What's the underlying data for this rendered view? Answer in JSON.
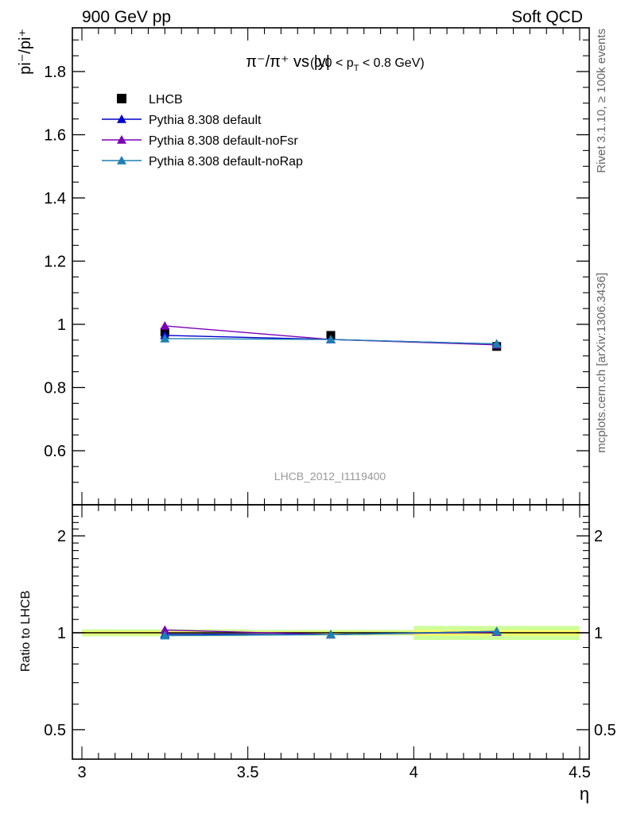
{
  "header": {
    "left": "900 GeV pp",
    "right": "Soft QCD"
  },
  "side": {
    "rivet": "Rivet 3.1.10, ≥ 100k events",
    "source": "mcplots.cern.ch [arXiv:1306.3436]"
  },
  "analysis_id": "LHCB_2012_I1119400",
  "chart_data": [
    {
      "type": "line",
      "title": {
        "main": "π⁻/π⁺ vs |y|",
        "sub": "(0.0 < p",
        "sub_T": "T",
        "sub_end": " < 0.8 GeV)"
      },
      "ylabel": "pi⁻/pi⁺",
      "xlim": [
        3.0,
        4.5
      ],
      "ylim": [
        0.44,
        1.95
      ],
      "yticks": [
        0.6,
        0.8,
        1.0,
        1.2,
        1.4,
        1.6,
        1.8
      ],
      "ytick_labels": [
        "0.6",
        "0.8",
        "1",
        "1.2",
        "1.4",
        "1.6",
        "1.8"
      ],
      "legend_position": "top-left",
      "series": [
        {
          "name": "LHCB",
          "kind": "data",
          "color": "#000000",
          "x": [
            3.25,
            3.75,
            4.25
          ],
          "y": [
            0.975,
            0.965,
            0.93
          ],
          "err": [
            0.012,
            0.01,
            0.01
          ]
        },
        {
          "name": "Pythia 8.308 default",
          "kind": "mc",
          "color": "#0000cc",
          "x": [
            3.25,
            3.75,
            4.25
          ],
          "y": [
            0.965,
            0.952,
            0.938
          ],
          "err": [
            0.006,
            0.003,
            0.003
          ]
        },
        {
          "name": "Pythia 8.308 default-noFsr",
          "kind": "mc",
          "color": "#7a00b4",
          "x": [
            3.25,
            3.75,
            4.25
          ],
          "y": [
            0.995,
            0.952,
            0.935
          ],
          "err": [
            0.012,
            0.004,
            0.004
          ]
        },
        {
          "name": "Pythia 8.308 default-noRap",
          "kind": "mc",
          "color": "#1e7fb4",
          "x": [
            3.25,
            3.75,
            4.25
          ],
          "y": [
            0.955,
            0.952,
            0.938
          ],
          "err": [
            0.005,
            0.003,
            0.003
          ]
        }
      ]
    },
    {
      "type": "line",
      "ylabel": "Ratio to LHCB",
      "xlabel": "η",
      "xlim": [
        3.0,
        4.5
      ],
      "ylim": [
        0.35,
        2.35
      ],
      "xticks": [
        3,
        3.5,
        4,
        4.5
      ],
      "xtick_labels": [
        "3",
        "3.5",
        "4",
        "4.5"
      ],
      "yticks": [
        0.5,
        1,
        2
      ],
      "ytick_labels": [
        "0.5",
        "1",
        "2"
      ],
      "uncertainty_band": {
        "edges": [
          3.0,
          3.5,
          4.0,
          4.5
        ],
        "inner": [
          0.012,
          0.01,
          0.02
        ],
        "outer": [
          0.025,
          0.02,
          0.05
        ],
        "inner_color": "#ffff66",
        "outer_color": "#ccff99"
      },
      "series": [
        {
          "name": "Pythia 8.308 default",
          "color": "#0000cc",
          "x": [
            3.25,
            3.75,
            4.25
          ],
          "y": [
            0.99,
            0.987,
            1.01
          ]
        },
        {
          "name": "Pythia 8.308 default-noFsr",
          "color": "#7a00b4",
          "x": [
            3.25,
            3.75,
            4.25
          ],
          "y": [
            1.02,
            0.987,
            1.005
          ]
        },
        {
          "name": "Pythia 8.308 default-noRap",
          "color": "#1e7fb4",
          "x": [
            3.25,
            3.75,
            4.25
          ],
          "y": [
            0.98,
            0.987,
            1.01
          ]
        }
      ]
    }
  ]
}
